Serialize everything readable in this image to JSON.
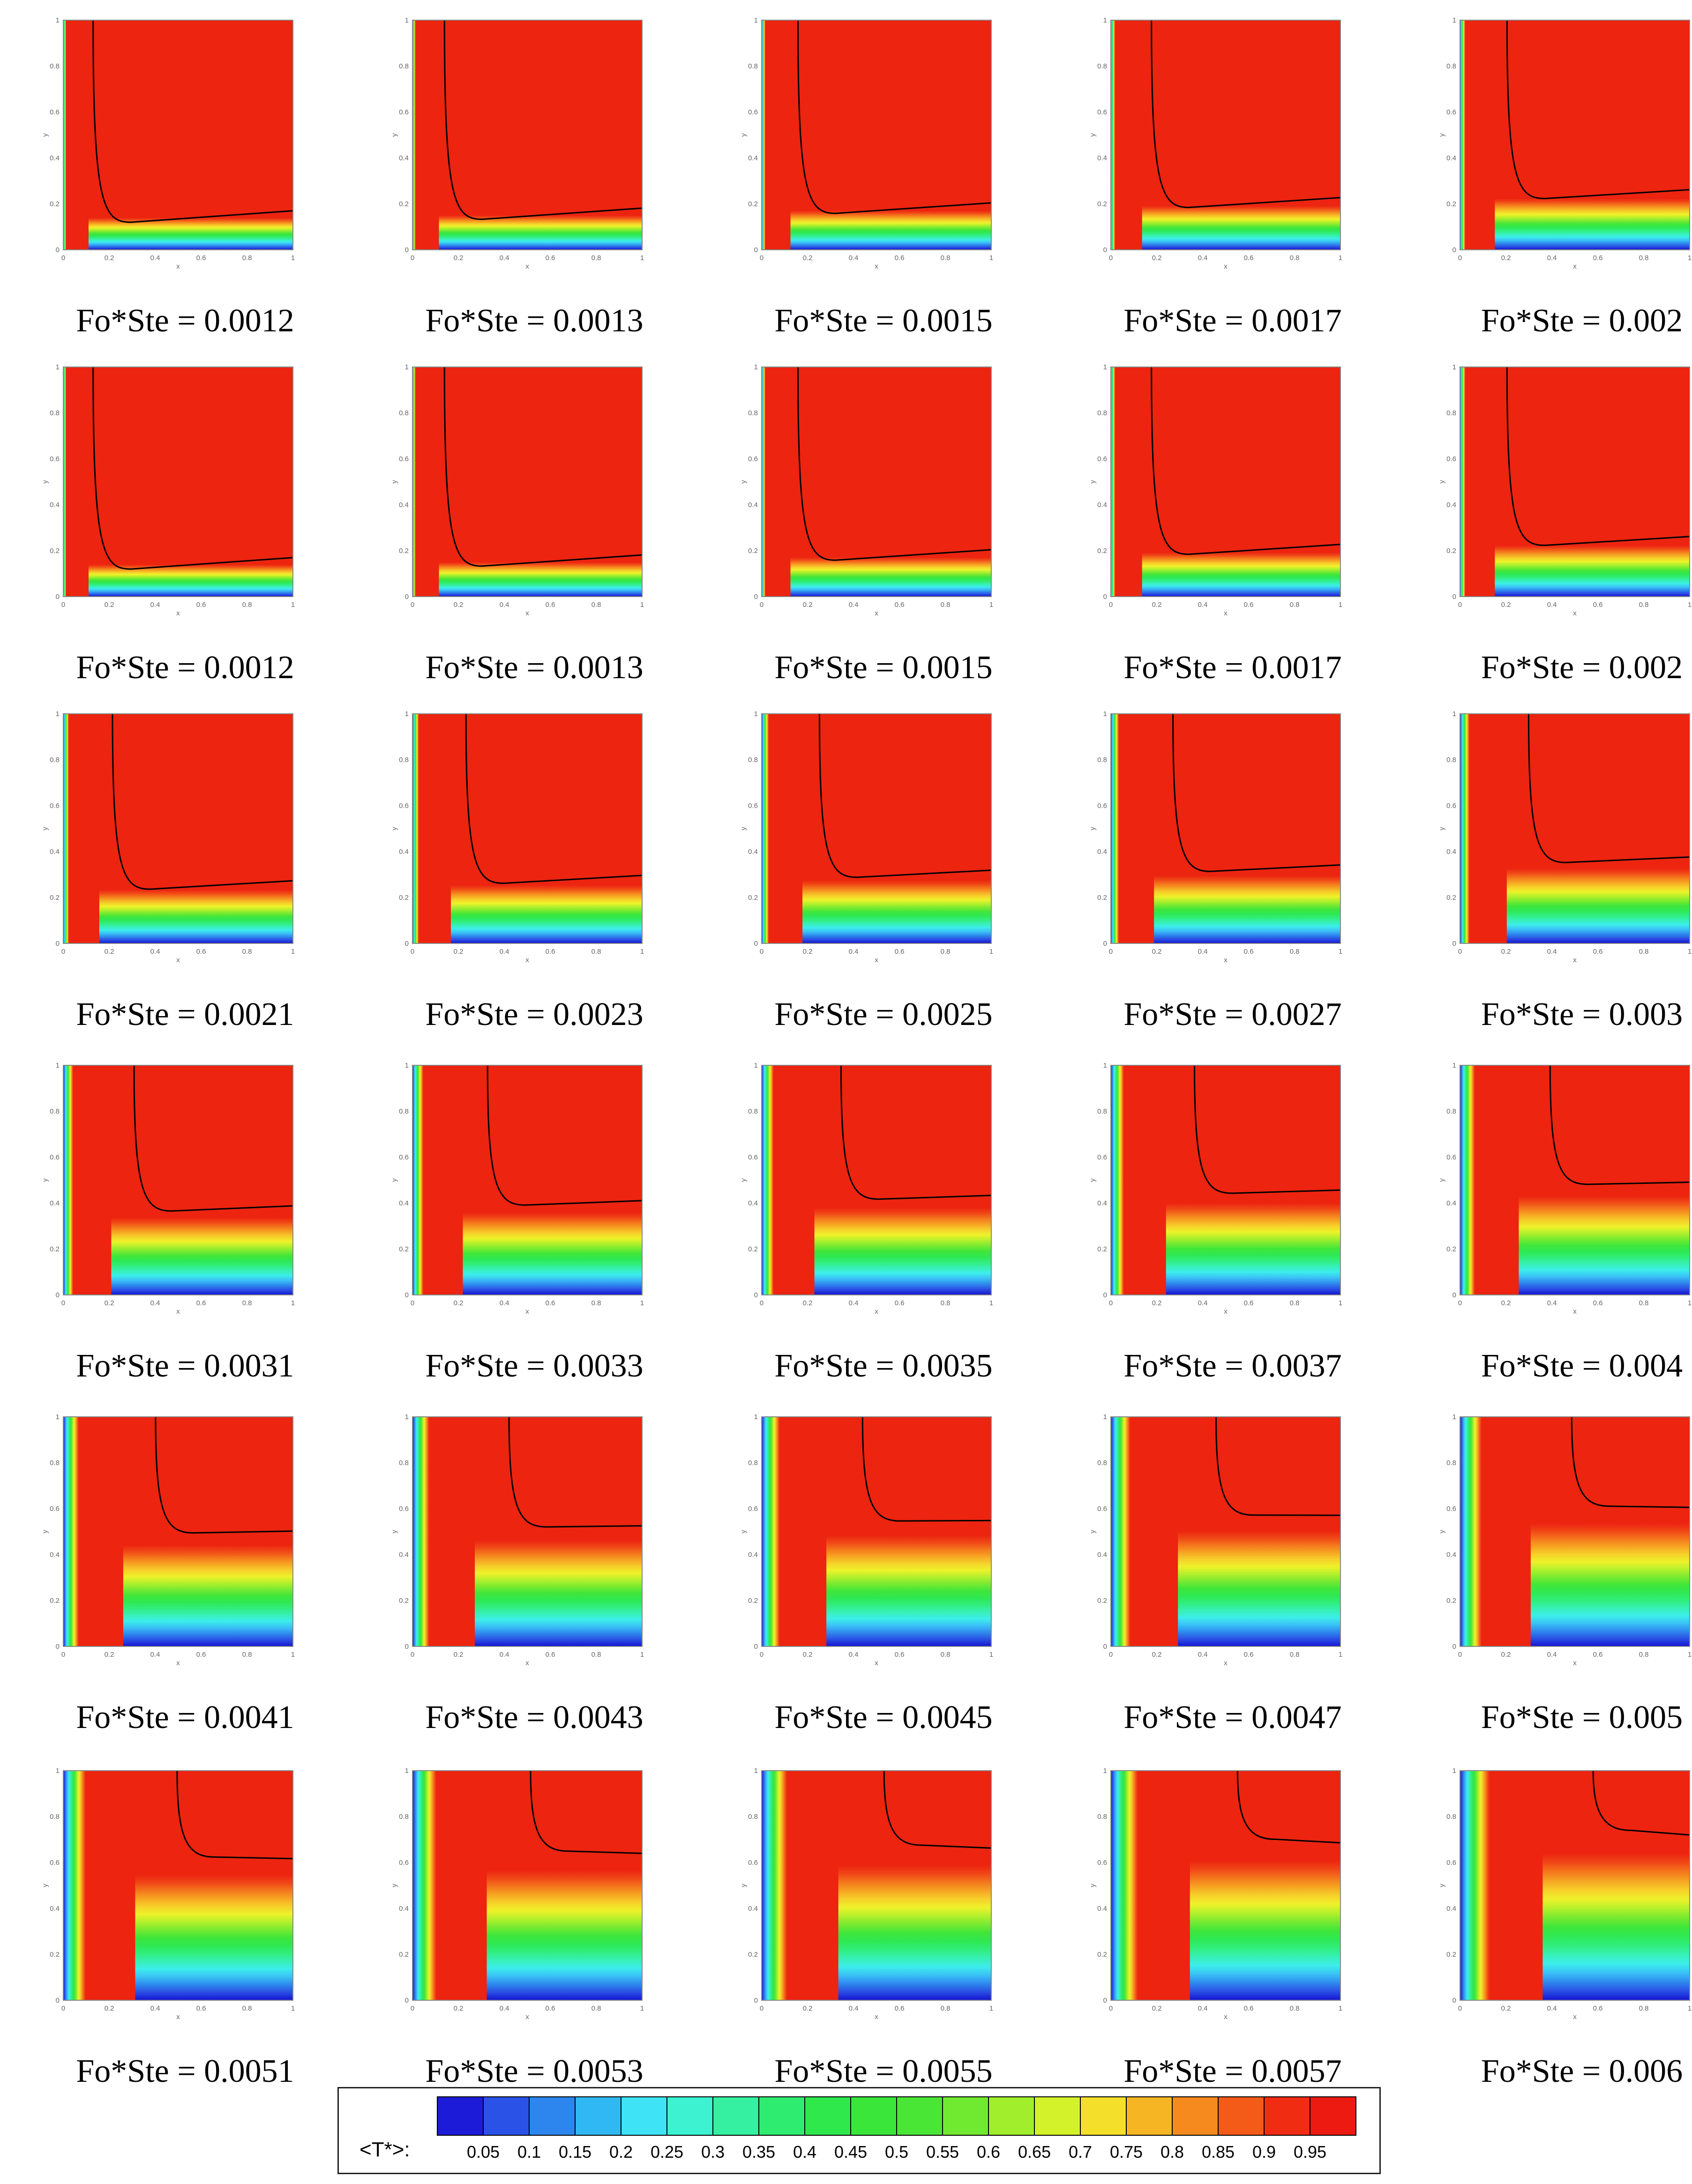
{
  "panels": [
    {
      "caption": "Fo*Ste = 0.0012",
      "t": 0.0012,
      "row": 0
    },
    {
      "caption": "Fo*Ste = 0.0013",
      "t": 0.0013,
      "row": 0
    },
    {
      "caption": "Fo*Ste = 0.0015",
      "t": 0.0015,
      "row": 0
    },
    {
      "caption": "Fo*Ste = 0.0017",
      "t": 0.0017,
      "row": 0
    },
    {
      "caption": "Fo*Ste = 0.002",
      "t": 0.002,
      "row": 0
    },
    {
      "caption": "Fo*Ste = 0.0012",
      "t": 0.0012,
      "row": 1
    },
    {
      "caption": "Fo*Ste = 0.0013",
      "t": 0.0013,
      "row": 1
    },
    {
      "caption": "Fo*Ste = 0.0015",
      "t": 0.0015,
      "row": 1
    },
    {
      "caption": "Fo*Ste = 0.0017",
      "t": 0.0017,
      "row": 1
    },
    {
      "caption": "Fo*Ste = 0.002",
      "t": 0.002,
      "row": 1
    },
    {
      "caption": "Fo*Ste = 0.0021",
      "t": 0.0021,
      "row": 2
    },
    {
      "caption": "Fo*Ste = 0.0023",
      "t": 0.0023,
      "row": 2
    },
    {
      "caption": "Fo*Ste = 0.0025",
      "t": 0.0025,
      "row": 2
    },
    {
      "caption": "Fo*Ste = 0.0027",
      "t": 0.0027,
      "row": 2
    },
    {
      "caption": "Fo*Ste = 0.003",
      "t": 0.003,
      "row": 2
    },
    {
      "caption": "Fo*Ste = 0.0031",
      "t": 0.0031,
      "row": 3
    },
    {
      "caption": "Fo*Ste = 0.0033",
      "t": 0.0033,
      "row": 3
    },
    {
      "caption": "Fo*Ste = 0.0035",
      "t": 0.0035,
      "row": 3
    },
    {
      "caption": "Fo*Ste = 0.0037",
      "t": 0.0037,
      "row": 3
    },
    {
      "caption": "Fo*Ste = 0.004",
      "t": 0.004,
      "row": 3
    },
    {
      "caption": "Fo*Ste = 0.0041",
      "t": 0.0041,
      "row": 4
    },
    {
      "caption": "Fo*Ste = 0.0043",
      "t": 0.0043,
      "row": 4
    },
    {
      "caption": "Fo*Ste = 0.0045",
      "t": 0.0045,
      "row": 4
    },
    {
      "caption": "Fo*Ste = 0.0047",
      "t": 0.0047,
      "row": 4
    },
    {
      "caption": "Fo*Ste = 0.005",
      "t": 0.005,
      "row": 4
    },
    {
      "caption": "Fo*Ste = 0.0051",
      "t": 0.0051,
      "row": 5
    },
    {
      "caption": "Fo*Ste = 0.0053",
      "t": 0.0053,
      "row": 5
    },
    {
      "caption": "Fo*Ste = 0.0055",
      "t": 0.0055,
      "row": 5
    },
    {
      "caption": "Fo*Ste = 0.0057",
      "t": 0.0057,
      "row": 5
    },
    {
      "caption": "Fo*Ste = 0.006",
      "t": 0.006,
      "row": 5
    }
  ],
  "axes": {
    "xlabel": "x",
    "ylabel": "y",
    "ticks": [
      "0",
      "0.2",
      "0.4",
      "0.6",
      "0.8",
      "1"
    ]
  },
  "legend": {
    "label": "<T*>:",
    "ticks": [
      "0.05",
      "0.1",
      "0.15",
      "0.2",
      "0.25",
      "0.3",
      "0.35",
      "0.4",
      "0.45",
      "0.5",
      "0.55",
      "0.6",
      "0.65",
      "0.7",
      "0.75",
      "0.8",
      "0.85",
      "0.9",
      "0.95"
    ],
    "colors": [
      "#1c1cd8",
      "#2a52e6",
      "#2c86ee",
      "#30b8f4",
      "#3ee4f6",
      "#3cf2d0",
      "#34f0a0",
      "#2eec70",
      "#2ee84c",
      "#3ae63a",
      "#4ae636",
      "#70ea30",
      "#a0ee2c",
      "#d4f22a",
      "#f4e02a",
      "#f6b624",
      "#f68a1e",
      "#f45a18",
      "#f02c12",
      "#ec1a10"
    ]
  },
  "colorscale": [
    "#1414d2",
    "#2a4ee4",
    "#2e8aee",
    "#3ac2f6",
    "#3ceeea",
    "#36f0b4",
    "#30ee7c",
    "#2ee852",
    "#40e63a",
    "#78ea30",
    "#b4f02c",
    "#eef22a",
    "#f6d02a",
    "#f6a422",
    "#f4761c",
    "#f04616",
    "#ec2410"
  ]
}
